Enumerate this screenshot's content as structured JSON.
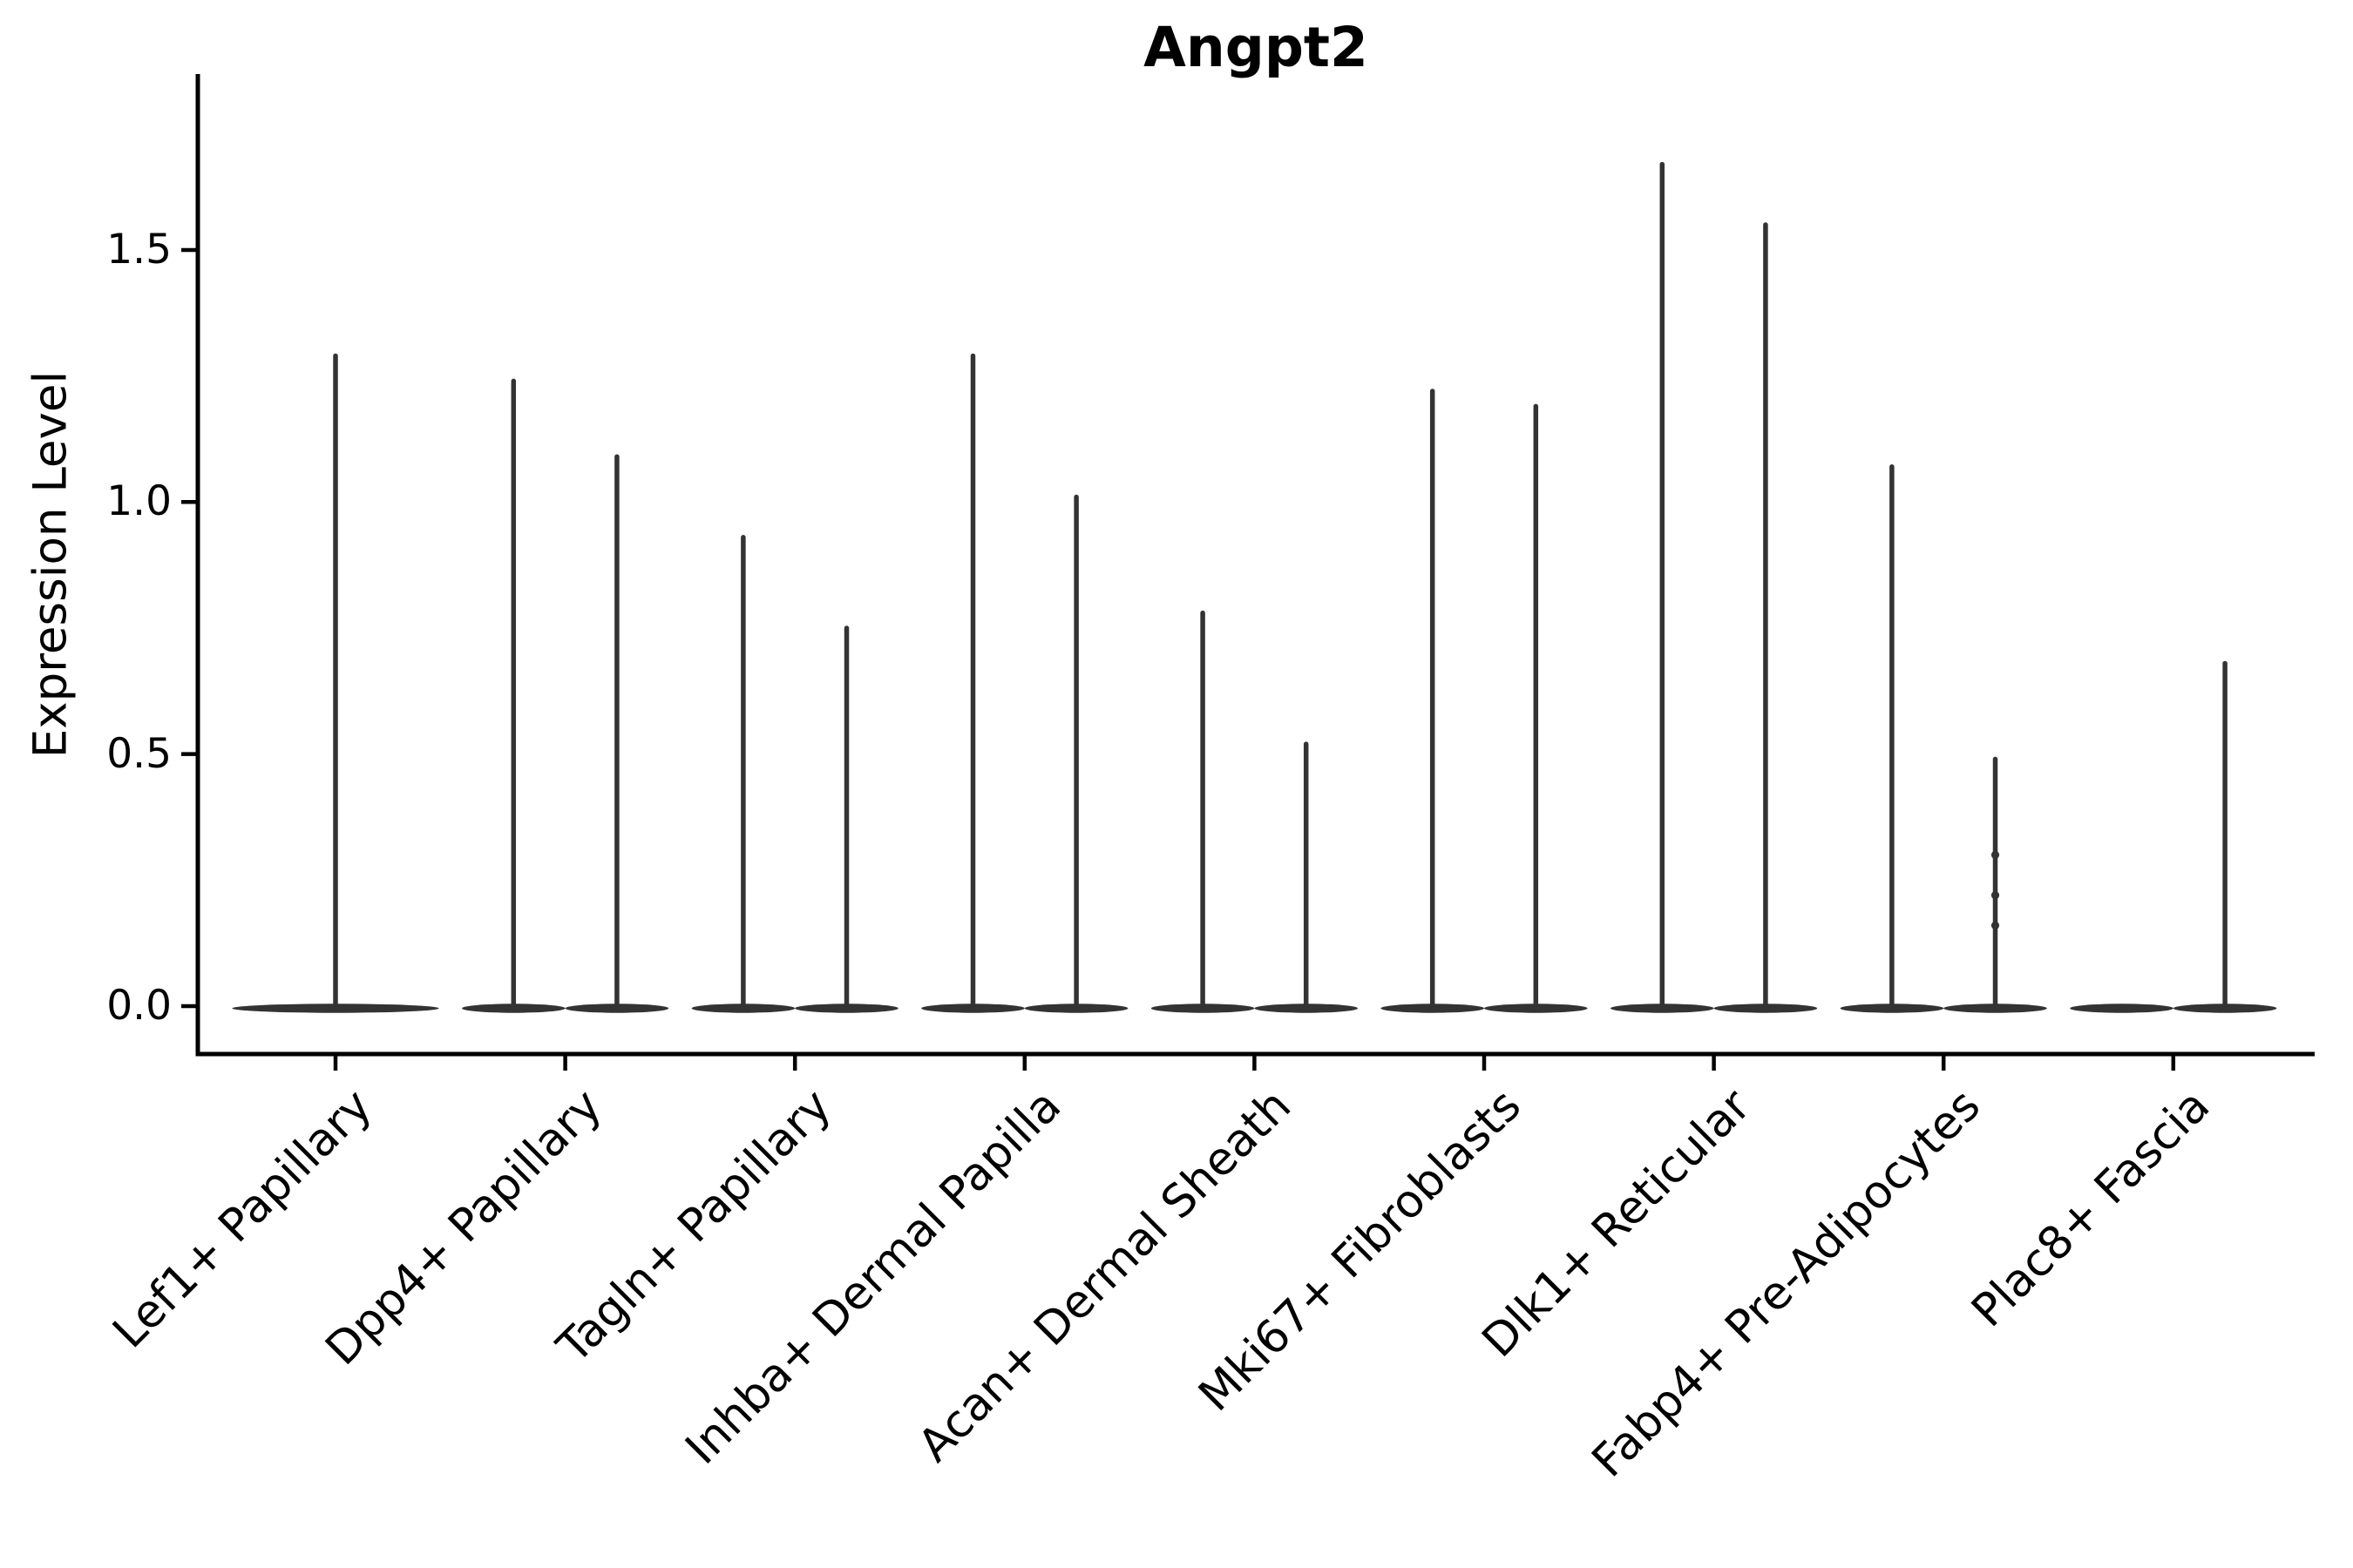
{
  "chart_data": {
    "type": "violin",
    "title": "Angpt2",
    "ylabel": "Expression Level",
    "xlabel": "",
    "grid": false,
    "legend": false,
    "ylim": [
      -0.1,
      1.85
    ],
    "yticks": [
      0.0,
      0.5,
      1.0,
      1.5
    ],
    "ytick_labels": [
      "0.0",
      "0.5",
      "1.0",
      "1.5"
    ],
    "violin_color": "#333333",
    "axis_color": "#000000",
    "categories": [
      "Lef1+ Papillary",
      "Dpp4+ Papillary",
      "Tagln+ Papillary",
      "Inhba+ Dermal Papilla",
      "Acan+ Dermal Sheath",
      "Mki67+ Fibroblasts",
      "Dlk1+ Reticular",
      "Fabp4+ Pre-Adipocytes",
      "Plac8+ Fascia"
    ],
    "groups": [
      {
        "category": "Lef1+ Papillary",
        "violins": [
          {
            "offset": 0.0,
            "width": 0.9,
            "max": 1.29,
            "points": []
          }
        ]
      },
      {
        "category": "Dpp4+ Papillary",
        "violins": [
          {
            "offset": -0.225,
            "width": 0.45,
            "max": 1.24,
            "points": []
          },
          {
            "offset": 0.225,
            "width": 0.45,
            "max": 1.09,
            "points": []
          }
        ]
      },
      {
        "category": "Tagln+ Papillary",
        "violins": [
          {
            "offset": -0.225,
            "width": 0.45,
            "max": 0.93,
            "points": []
          },
          {
            "offset": 0.225,
            "width": 0.45,
            "max": 0.75,
            "points": []
          }
        ]
      },
      {
        "category": "Inhba+ Dermal Papilla",
        "violins": [
          {
            "offset": -0.225,
            "width": 0.45,
            "max": 1.29,
            "points": []
          },
          {
            "offset": 0.225,
            "width": 0.45,
            "max": 1.01,
            "points": []
          }
        ]
      },
      {
        "category": "Acan+ Dermal Sheath",
        "violins": [
          {
            "offset": -0.225,
            "width": 0.45,
            "max": 0.78,
            "points": []
          },
          {
            "offset": 0.225,
            "width": 0.45,
            "max": 0.52,
            "points": []
          }
        ]
      },
      {
        "category": "Mki67+ Fibroblasts",
        "violins": [
          {
            "offset": -0.225,
            "width": 0.45,
            "max": 1.22,
            "points": []
          },
          {
            "offset": 0.225,
            "width": 0.45,
            "max": 1.19,
            "points": []
          }
        ]
      },
      {
        "category": "Dlk1+ Reticular",
        "violins": [
          {
            "offset": -0.225,
            "width": 0.45,
            "max": 1.67,
            "points": []
          },
          {
            "offset": 0.225,
            "width": 0.45,
            "max": 1.55,
            "points": []
          }
        ]
      },
      {
        "category": "Fabp4+ Pre-Adipocytes",
        "violins": [
          {
            "offset": -0.225,
            "width": 0.45,
            "max": 1.07,
            "points": []
          },
          {
            "offset": 0.225,
            "width": 0.45,
            "max": 0.49,
            "points": [
              0.3,
              0.22,
              0.16
            ]
          }
        ]
      },
      {
        "category": "Plac8+ Fascia",
        "violins": [
          {
            "offset": -0.225,
            "width": 0.45,
            "max": 0.0,
            "points": []
          },
          {
            "offset": 0.225,
            "width": 0.45,
            "max": 0.68,
            "points": []
          }
        ]
      }
    ]
  }
}
